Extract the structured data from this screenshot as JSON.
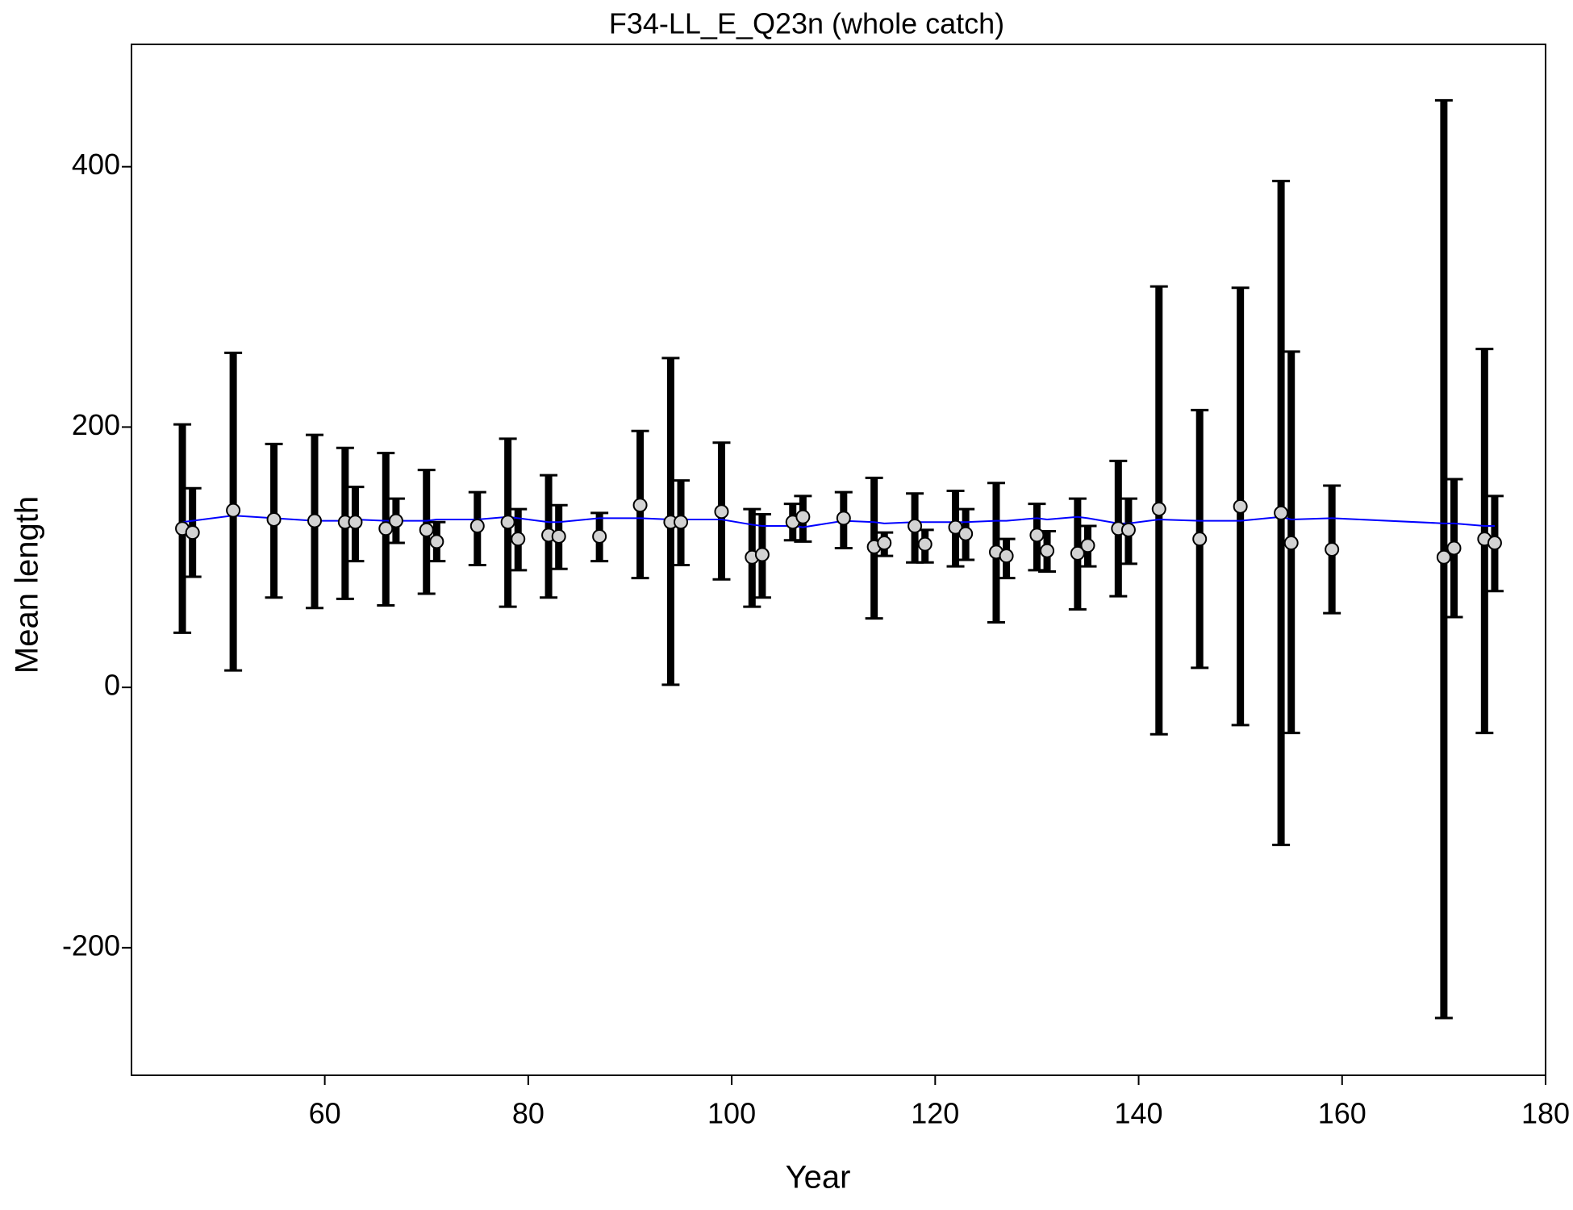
{
  "chart_data": {
    "type": "errorbar",
    "title": "F34-LL_E_Q23n (whole catch)",
    "x_label": "Year",
    "y_label": "Mean length",
    "xlim": [
      41,
      180
    ],
    "ylim": [
      -298,
      494
    ],
    "xticks": [
      60,
      80,
      100,
      120,
      140,
      160,
      180
    ],
    "yticks": [
      -200,
      0,
      200,
      400
    ],
    "point_color": "#d3d3d3",
    "bar_color": "#000000",
    "x": [
      46,
      47,
      51,
      55,
      59,
      62,
      63,
      66,
      67,
      70,
      71,
      75,
      78,
      79,
      82,
      83,
      87,
      91,
      94,
      95,
      99,
      102,
      103,
      106,
      107,
      111,
      114,
      115,
      118,
      119,
      122,
      123,
      126,
      127,
      130,
      131,
      134,
      135,
      138,
      139,
      142,
      146,
      150,
      154,
      155,
      159,
      170,
      171,
      174,
      175
    ],
    "values": [
      122,
      119,
      136,
      129,
      128,
      127,
      127,
      122,
      128,
      121,
      112,
      124,
      127,
      114,
      117,
      116,
      116,
      140,
      127,
      127,
      135,
      100,
      102,
      127,
      131,
      130,
      108,
      111,
      124,
      110,
      123,
      118,
      104,
      101,
      117,
      105,
      103,
      109,
      122,
      121,
      137,
      114,
      139,
      134,
      111,
      106,
      100,
      107,
      114,
      111
    ],
    "lower": [
      42,
      85,
      13,
      69,
      61,
      68,
      97,
      63,
      111,
      72,
      97,
      94,
      62,
      90,
      69,
      91,
      97,
      84,
      2,
      94,
      83,
      62,
      69,
      113,
      112,
      107,
      53,
      101,
      96,
      96,
      93,
      98,
      50,
      84,
      90,
      89,
      60,
      93,
      70,
      95,
      -36,
      15,
      -29,
      -121,
      -35,
      57,
      -254,
      54,
      -35,
      74
    ],
    "upper": [
      202,
      153,
      257,
      187,
      194,
      184,
      154,
      180,
      145,
      167,
      127,
      150,
      191,
      137,
      163,
      140,
      134,
      197,
      253,
      159,
      188,
      137,
      133,
      141,
      147,
      150,
      161,
      119,
      149,
      121,
      151,
      137,
      157,
      114,
      141,
      120,
      145,
      124,
      174,
      145,
      308,
      213,
      307,
      389,
      258,
      155,
      451,
      160,
      260,
      147
    ],
    "fit": {
      "color": "#0000ff",
      "values": [
        127,
        128,
        132,
        130,
        128,
        128,
        129,
        128,
        128,
        128,
        129,
        129,
        131,
        130,
        127,
        127,
        130,
        130,
        129,
        129,
        129,
        125,
        124,
        124,
        123,
        128,
        127,
        126,
        127,
        127,
        127,
        127,
        128,
        128,
        130,
        129,
        131,
        130,
        126,
        126,
        129,
        128,
        128,
        131,
        129,
        130,
        126,
        126,
        124,
        124
      ]
    }
  }
}
